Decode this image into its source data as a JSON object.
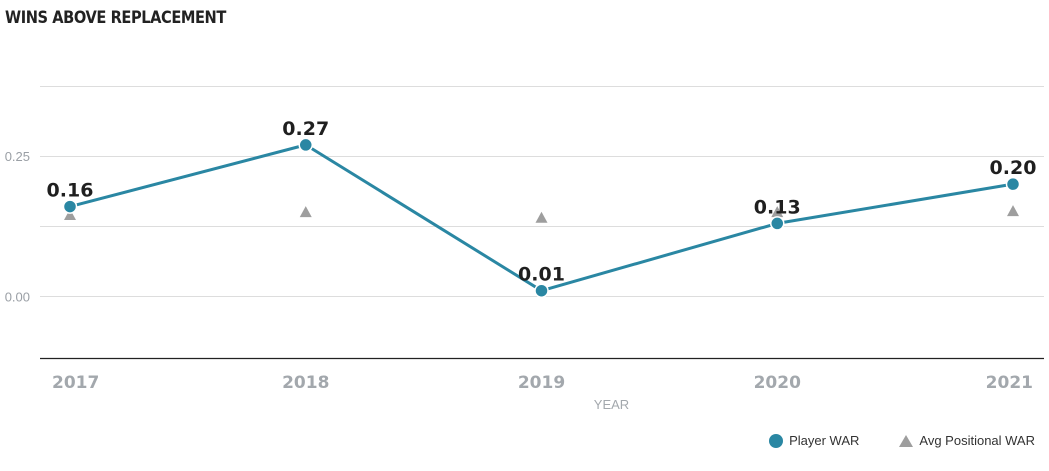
{
  "title": "WINS ABOVE REPLACEMENT",
  "colors": {
    "player": "#2a87a3",
    "average": "#9e9e9e",
    "grid": "#dddddd",
    "axis": "#222222"
  },
  "chart_data": {
    "type": "line",
    "title": "WINS ABOVE REPLACEMENT",
    "xlabel": "YEAR",
    "ylabel": "",
    "categories": [
      "2017",
      "2018",
      "2019",
      "2020",
      "2021"
    ],
    "ylim": [
      -0.11,
      0.375
    ],
    "yticks": [
      0.25,
      0.0
    ],
    "ytick_labels": [
      "0.25",
      "0.00"
    ],
    "gridlines": [
      0.375,
      0.25,
      0.125,
      0.0
    ],
    "series": [
      {
        "name": "Player WAR",
        "marker": "circle",
        "values": [
          0.16,
          0.27,
          0.01,
          0.13,
          0.2
        ],
        "labels": [
          "0.16",
          "0.27",
          "0.01",
          "0.13",
          "0.20"
        ]
      },
      {
        "name": "Avg Positional WAR",
        "marker": "triangle",
        "values": [
          0.145,
          0.15,
          0.14,
          0.15,
          0.152
        ]
      }
    ],
    "legend_position": "bottom-right",
    "grid": true
  }
}
